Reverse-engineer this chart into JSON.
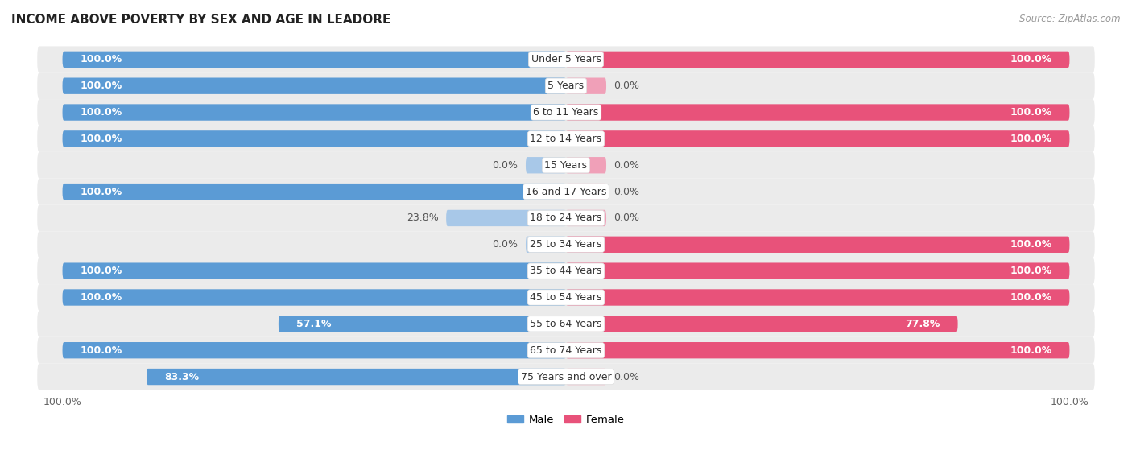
{
  "title": "INCOME ABOVE POVERTY BY SEX AND AGE IN LEADORE",
  "source": "Source: ZipAtlas.com",
  "categories": [
    "Under 5 Years",
    "5 Years",
    "6 to 11 Years",
    "12 to 14 Years",
    "15 Years",
    "16 and 17 Years",
    "18 to 24 Years",
    "25 to 34 Years",
    "35 to 44 Years",
    "45 to 54 Years",
    "55 to 64 Years",
    "65 to 74 Years",
    "75 Years and over"
  ],
  "male": [
    100.0,
    100.0,
    100.0,
    100.0,
    0.0,
    100.0,
    23.8,
    0.0,
    100.0,
    100.0,
    57.1,
    100.0,
    83.3
  ],
  "female": [
    100.0,
    0.0,
    100.0,
    100.0,
    0.0,
    0.0,
    0.0,
    100.0,
    100.0,
    100.0,
    77.8,
    100.0,
    0.0
  ],
  "male_color_full": "#5b9bd5",
  "male_color_light": "#a8c8e8",
  "female_color_full": "#e8527a",
  "female_color_light": "#f0a0b8",
  "row_bg_color": "#ebebeb",
  "figsize": [
    14.06,
    5.59
  ]
}
